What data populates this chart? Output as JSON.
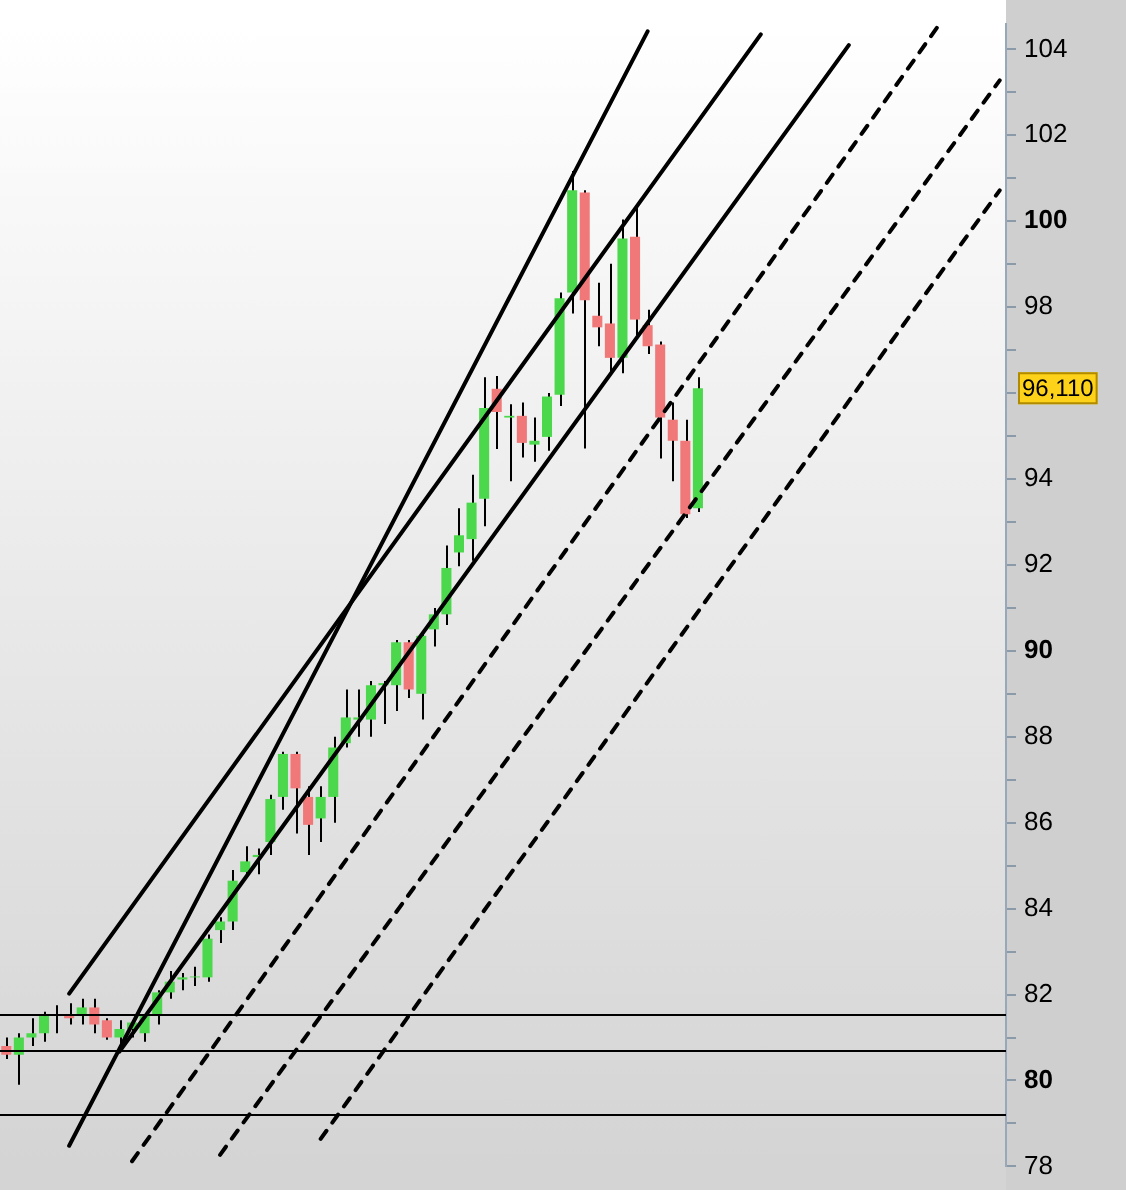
{
  "chart_data": {
    "type": "candlestick",
    "tick_labels": "y",
    "legend": false,
    "grid": false,
    "categories": [
      null,
      null,
      null,
      null,
      null,
      null,
      null,
      null,
      null,
      null,
      null,
      null,
      null,
      null,
      null,
      null,
      null,
      null,
      null,
      null,
      null,
      null,
      null,
      null,
      null,
      null,
      null,
      null,
      null,
      null,
      null,
      null,
      null,
      null,
      null,
      null,
      null,
      null,
      null,
      null,
      null,
      null,
      null,
      null,
      null,
      null,
      null,
      null,
      null,
      null,
      null,
      null,
      null,
      null,
      null,
      null,
      null,
      null,
      null,
      null,
      null,
      null,
      null,
      null,
      null,
      null,
      null,
      null,
      null,
      null,
      null,
      null,
      null,
      null,
      null,
      null,
      null,
      null,
      null,
      null
    ],
    "ohlc": [
      [
        80.8,
        81.0,
        80.5,
        80.6
      ],
      [
        80.6,
        81.1,
        79.9,
        81.0
      ],
      [
        81.0,
        81.45,
        80.8,
        81.1
      ],
      [
        81.1,
        81.6,
        80.9,
        81.5
      ],
      [
        81.5,
        81.75,
        81.1,
        81.52
      ],
      [
        81.5,
        81.8,
        81.3,
        81.45
      ],
      [
        81.5,
        81.9,
        81.3,
        81.7
      ],
      [
        81.7,
        81.9,
        81.1,
        81.3
      ],
      [
        81.4,
        81.45,
        80.95,
        81.0
      ],
      [
        81.0,
        81.4,
        80.7,
        81.2
      ],
      [
        81.2,
        81.4,
        81.0,
        81.35
      ],
      [
        81.1,
        81.55,
        80.9,
        81.5
      ],
      [
        81.5,
        82.1,
        81.3,
        82.05
      ],
      [
        82.05,
        82.55,
        81.9,
        82.3
      ],
      [
        82.35,
        82.5,
        82.1,
        82.4
      ],
      [
        82.4,
        82.65,
        82.2,
        82.42
      ],
      [
        82.4,
        83.4,
        82.3,
        83.3
      ],
      [
        83.5,
        83.8,
        83.2,
        83.7
      ],
      [
        83.7,
        84.9,
        83.5,
        84.65
      ],
      [
        84.85,
        85.45,
        84.75,
        85.1
      ],
      [
        85.2,
        85.4,
        84.8,
        85.25
      ],
      [
        85.55,
        86.65,
        85.25,
        86.55
      ],
      [
        86.6,
        87.65,
        86.3,
        87.6
      ],
      [
        87.6,
        87.65,
        85.75,
        86.8
      ],
      [
        86.6,
        86.85,
        85.25,
        85.95
      ],
      [
        86.1,
        86.85,
        85.55,
        86.6
      ],
      [
        86.6,
        88.0,
        86.0,
        87.75
      ],
      [
        87.85,
        89.1,
        87.75,
        88.45
      ],
      [
        88.4,
        89.1,
        88.0,
        88.45
      ],
      [
        88.4,
        89.3,
        88.0,
        89.2
      ],
      [
        89.2,
        89.3,
        88.3,
        89.25
      ],
      [
        89.2,
        90.25,
        88.6,
        90.2
      ],
      [
        90.2,
        90.25,
        88.9,
        89.1
      ],
      [
        89.0,
        90.45,
        88.4,
        90.35
      ],
      [
        90.5,
        91.0,
        90.1,
        90.85
      ],
      [
        90.85,
        92.45,
        90.6,
        91.93
      ],
      [
        92.29,
        93.32,
        91.97,
        92.69
      ],
      [
        92.6,
        94.1,
        92.1,
        93.45
      ],
      [
        93.54,
        96.37,
        92.9,
        95.65
      ],
      [
        96.1,
        96.4,
        94.7,
        95.56
      ],
      [
        95.43,
        95.74,
        93.95,
        95.47
      ],
      [
        95.47,
        95.78,
        94.5,
        94.84
      ],
      [
        94.8,
        95.43,
        94.4,
        94.89
      ],
      [
        94.98,
        96.0,
        94.66,
        95.92
      ],
      [
        95.96,
        98.34,
        95.7,
        98.21
      ],
      [
        98.34,
        101.17,
        97.85,
        100.72
      ],
      [
        100.67,
        100.72,
        94.71,
        98.16
      ],
      [
        97.8,
        98.57,
        97.09,
        97.53
      ],
      [
        97.62,
        99.01,
        96.46,
        96.82
      ],
      [
        96.82,
        100.04,
        96.46,
        99.6
      ],
      [
        99.64,
        100.31,
        97.35,
        97.71
      ],
      [
        97.58,
        97.94,
        96.91,
        97.09
      ],
      [
        97.13,
        97.2,
        94.48,
        95.43
      ],
      [
        95.38,
        95.78,
        93.95,
        94.89
      ],
      [
        94.89,
        95.38,
        93.09,
        93.18
      ],
      [
        93.32,
        96.37,
        93.23,
        96.11
      ],
      null,
      null,
      null,
      null,
      null,
      null,
      null,
      null,
      null,
      null,
      null,
      null,
      null,
      null,
      null,
      null,
      null,
      null,
      null,
      null,
      null,
      null,
      null,
      null
    ],
    "colors": [
      "#f07878",
      "#4cd84c",
      "#4cd84c",
      "#4cd84c",
      "#4cd84c",
      "#f07878",
      "#4cd84c",
      "#f07878",
      "#f07878",
      "#4cd84c",
      "#4cd84c",
      "#4cd84c",
      "#4cd84c",
      "#4cd84c",
      "#4cd84c",
      "#4cd84c",
      "#4cd84c",
      "#4cd84c",
      "#4cd84c",
      "#4cd84c",
      "#4cd84c",
      "#4cd84c",
      "#4cd84c",
      "#f07878",
      "#f07878",
      "#4cd84c",
      "#4cd84c",
      "#4cd84c",
      "#4cd84c",
      "#4cd84c",
      "#4cd84c",
      "#4cd84c",
      "#f07878",
      "#4cd84c",
      "#4cd84c",
      "#4cd84c",
      "#4cd84c",
      "#4cd84c",
      "#4cd84c",
      "#f07878",
      "#4cd84c",
      "#f07878",
      "#4cd84c",
      "#4cd84c",
      "#4cd84c",
      "#4cd84c",
      "#f07878",
      "#f07878",
      "#f07878",
      "#4cd84c",
      "#f07878",
      "#f07878",
      "#f07878",
      "#f07878",
      "#f07878",
      "#4cd84c",
      null,
      null,
      null,
      null,
      null,
      null,
      null,
      null,
      null,
      null,
      null,
      null,
      null,
      null,
      null,
      null,
      null,
      null,
      null,
      null,
      null,
      null,
      null,
      null
    ],
    "series": [
      {
        "type": "line",
        "color": "#000000",
        "line_style": "solid",
        "values": [
          null,
          null,
          null,
          null,
          null,
          78.48,
          null,
          null,
          null,
          null,
          null,
          null,
          null,
          null,
          null,
          null,
          null,
          null,
          null,
          null,
          null,
          null,
          null,
          null,
          null,
          null,
          null,
          null,
          null,
          null,
          null,
          null,
          null,
          null,
          null,
          null,
          null,
          null,
          null,
          null,
          null,
          null,
          null,
          null,
          null,
          null,
          null,
          null,
          null,
          null,
          null,
          104.42,
          null,
          null,
          null,
          null,
          null,
          null,
          null,
          null,
          null,
          null,
          null,
          null,
          null,
          null,
          null,
          null,
          null,
          null,
          null,
          null,
          null,
          null,
          null,
          null,
          null,
          null,
          null,
          null
        ]
      },
      {
        "type": "line",
        "color": "#000000",
        "line_style": "solid",
        "values": [
          null,
          null,
          null,
          null,
          null,
          82.02,
          null,
          null,
          null,
          null,
          null,
          null,
          null,
          null,
          null,
          null,
          null,
          null,
          null,
          null,
          null,
          null,
          null,
          null,
          null,
          null,
          null,
          null,
          null,
          null,
          null,
          null,
          null,
          null,
          null,
          null,
          null,
          null,
          null,
          null,
          null,
          null,
          null,
          null,
          null,
          null,
          null,
          null,
          null,
          null,
          null,
          null,
          null,
          null,
          null,
          null,
          null,
          null,
          null,
          null,
          104.35,
          null,
          null,
          null,
          null,
          null,
          null,
          null,
          null,
          null,
          null,
          null,
          null,
          null,
          null,
          null,
          null,
          null,
          null,
          null
        ]
      },
      {
        "type": "line",
        "color": "#000000",
        "line_style": "solid",
        "values": [
          null,
          null,
          null,
          null,
          null,
          null,
          null,
          null,
          null,
          80.67,
          null,
          null,
          null,
          null,
          null,
          null,
          null,
          null,
          null,
          null,
          null,
          null,
          null,
          null,
          null,
          null,
          null,
          null,
          null,
          null,
          null,
          null,
          null,
          null,
          null,
          null,
          null,
          null,
          null,
          null,
          null,
          null,
          null,
          null,
          null,
          null,
          null,
          null,
          null,
          null,
          null,
          null,
          null,
          null,
          null,
          null,
          null,
          null,
          null,
          null,
          null,
          null,
          null,
          null,
          null,
          null,
          null,
          104.1,
          null,
          null,
          null,
          null,
          null,
          null,
          null,
          null,
          null,
          null,
          null,
          null
        ]
      },
      {
        "type": "line",
        "color": "#000000",
        "line_style": "dashed",
        "values": [
          null,
          null,
          null,
          null,
          null,
          null,
          null,
          null,
          null,
          null,
          78.12,
          null,
          null,
          null,
          null,
          null,
          null,
          null,
          null,
          null,
          null,
          null,
          null,
          null,
          null,
          null,
          null,
          null,
          null,
          null,
          null,
          null,
          null,
          null,
          null,
          null,
          null,
          null,
          null,
          null,
          null,
          null,
          null,
          null,
          null,
          null,
          null,
          null,
          null,
          null,
          null,
          null,
          null,
          null,
          null,
          null,
          null,
          null,
          null,
          null,
          null,
          null,
          null,
          null,
          null,
          null,
          null,
          null,
          null,
          null,
          null,
          null,
          null,
          null,
          104.5,
          null,
          null,
          null,
          null,
          null
        ]
      },
      {
        "type": "line",
        "color": "#000000",
        "line_style": "dashed",
        "values": [
          null,
          null,
          null,
          null,
          null,
          null,
          null,
          null,
          null,
          null,
          null,
          null,
          null,
          null,
          null,
          null,
          null,
          78.27,
          null,
          null,
          null,
          null,
          null,
          null,
          null,
          null,
          null,
          null,
          null,
          null,
          null,
          null,
          null,
          null,
          null,
          null,
          null,
          null,
          null,
          null,
          null,
          null,
          null,
          null,
          null,
          null,
          null,
          null,
          null,
          null,
          null,
          null,
          null,
          null,
          null,
          null,
          null,
          null,
          null,
          null,
          null,
          null,
          null,
          null,
          null,
          null,
          null,
          null,
          null,
          null,
          null,
          null,
          null,
          null,
          null,
          null,
          null,
          null,
          null,
          103.28
        ]
      },
      {
        "type": "line",
        "color": "#000000",
        "line_style": "dashed",
        "values": [
          null,
          null,
          null,
          null,
          null,
          null,
          null,
          null,
          null,
          null,
          null,
          null,
          null,
          null,
          null,
          null,
          null,
          null,
          null,
          null,
          null,
          null,
          null,
          null,
          null,
          78.64,
          null,
          null,
          null,
          null,
          null,
          null,
          null,
          null,
          null,
          null,
          null,
          null,
          null,
          null,
          null,
          null,
          null,
          null,
          null,
          null,
          null,
          null,
          null,
          null,
          null,
          null,
          null,
          null,
          null,
          null,
          null,
          null,
          null,
          null,
          null,
          null,
          null,
          null,
          null,
          null,
          null,
          null,
          null,
          null,
          null,
          null,
          null,
          null,
          null,
          null,
          null,
          null,
          null,
          100.72
        ]
      }
    ],
    "ylim": [
      78,
      104.6
    ],
    "yticks": [
      78,
      {
        "value": 79,
        "label": null
      },
      80,
      {
        "value": 81,
        "label": null
      },
      82,
      {
        "value": 83,
        "label": null
      },
      84,
      {
        "value": 85,
        "label": null
      },
      86,
      {
        "value": 87,
        "label": null
      },
      88,
      {
        "value": 89,
        "label": null
      },
      90,
      {
        "value": 91,
        "label": null
      },
      92,
      {
        "value": 93,
        "label": null
      },
      94,
      {
        "value": 95,
        "label": null
      },
      {
        "value": 96,
        "label": null
      },
      {
        "value": 97,
        "label": null
      },
      98,
      {
        "value": 99,
        "label": null
      },
      100,
      {
        "value": 101,
        "label": null
      },
      102,
      {
        "value": 103,
        "label": null
      },
      104
    ],
    "ref_lines": [
      {
        "axis": "y",
        "value": 81.57,
        "color": "#000000"
      },
      {
        "axis": "y",
        "value": 80.72,
        "color": "#000000"
      },
      {
        "axis": "y",
        "value": 79.24,
        "color": "#000000"
      }
    ],
    "annotations": [
      "96,110"
    ]
  }
}
